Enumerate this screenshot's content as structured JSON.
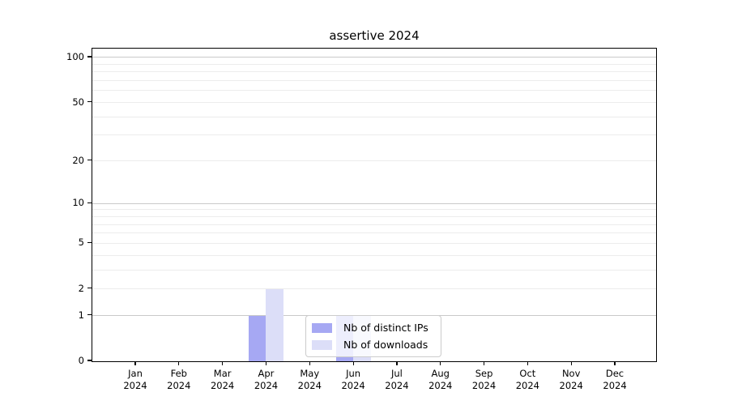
{
  "title": "assertive 2024",
  "colors": {
    "distinct_ips": "#a6a8f3",
    "downloads": "#dcdef8",
    "grid_major": "#c9c9c9",
    "grid_minor": "#ececec",
    "axis": "#000000",
    "legend_border": "#cccccc"
  },
  "chart_data": {
    "type": "bar",
    "title": "assertive 2024",
    "x_categories": [
      "Jan",
      "Feb",
      "Mar",
      "Apr",
      "May",
      "Jun",
      "Jul",
      "Aug",
      "Sep",
      "Oct",
      "Nov",
      "Dec"
    ],
    "x_year": "2024",
    "series": [
      {
        "name": "Nb of distinct IPs",
        "color": "#a6a8f3",
        "values": [
          0,
          0,
          0,
          1,
          0,
          1,
          0,
          0,
          0,
          0,
          0,
          0
        ]
      },
      {
        "name": "Nb of downloads",
        "color": "#dcdef8",
        "values": [
          0,
          0,
          0,
          2,
          0,
          1,
          0,
          0,
          0,
          0,
          0,
          0
        ]
      }
    ],
    "y_scale": "log1p",
    "y_tick_values": [
      0,
      1,
      2,
      5,
      10,
      20,
      50,
      100
    ],
    "y_grid_major": [
      1,
      10,
      100
    ],
    "y_grid_minor": [
      2,
      3,
      4,
      5,
      6,
      7,
      8,
      9,
      20,
      30,
      40,
      50,
      60,
      70,
      80,
      90
    ],
    "ylim": [
      0,
      114
    ],
    "grid": true,
    "legend_position": "inside-lower-center-right",
    "legend_items": [
      "Nb of distinct IPs",
      "Nb of downloads"
    ]
  }
}
